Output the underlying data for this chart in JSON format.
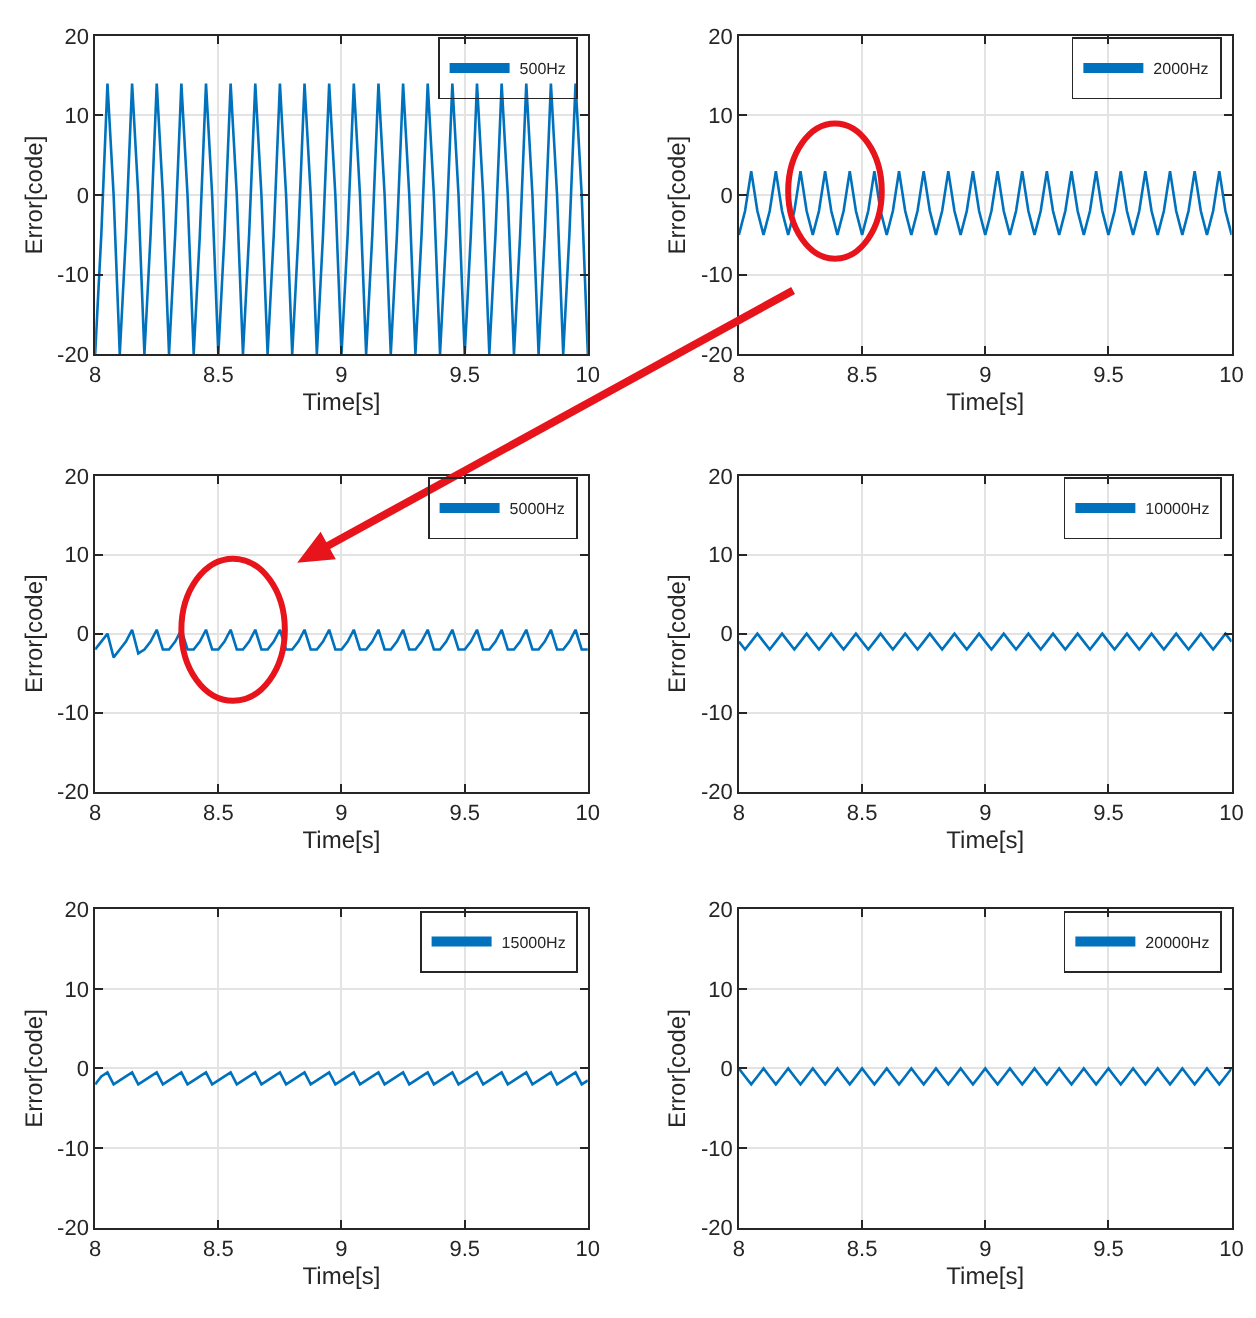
{
  "chart_data": [
    {
      "type": "line",
      "xlabel": "Time[s]",
      "ylabel": "Error[code]",
      "xlim": [
        8,
        10
      ],
      "xticks": [
        8,
        8.5,
        9,
        9.5,
        10
      ],
      "ylim": [
        -20,
        20
      ],
      "yticks": [
        -20,
        -10,
        0,
        10,
        20
      ],
      "grid": true,
      "legend": "top right",
      "x": [
        8,
        8.025,
        8.05,
        8.075,
        8.1,
        8.125,
        8.15,
        8.175,
        8.2,
        8.225,
        8.25,
        8.275,
        8.3,
        8.325,
        8.35,
        8.375,
        8.4,
        8.425,
        8.45,
        8.475,
        8.5,
        8.525,
        8.55,
        8.575,
        8.6,
        8.625,
        8.65,
        8.675,
        8.7,
        8.725,
        8.75,
        8.775,
        8.8,
        8.825,
        8.85,
        8.875,
        8.9,
        8.925,
        8.95,
        8.975,
        9,
        9.025,
        9.05,
        9.075,
        9.1,
        9.125,
        9.15,
        9.175,
        9.2,
        9.225,
        9.25,
        9.275,
        9.3,
        9.325,
        9.35,
        9.375,
        9.4,
        9.425,
        9.45,
        9.475,
        9.5,
        9.525,
        9.55,
        9.575,
        9.6,
        9.625,
        9.65,
        9.675,
        9.7,
        9.725,
        9.75,
        9.775,
        9.8,
        9.825,
        9.85,
        9.875,
        9.9,
        9.925,
        9.95,
        9.975,
        10
      ],
      "series": [
        {
          "name": "500Hz",
          "color": "#0072bd",
          "values": [
            -20,
            -5,
            14,
            0,
            -20,
            -5,
            14,
            0,
            -20,
            -5,
            14,
            0,
            -20,
            -5,
            14,
            0,
            -20,
            -5,
            14,
            0,
            -20,
            -5,
            14,
            0,
            -20,
            -5,
            14,
            0,
            -20,
            -5,
            14,
            0,
            -20,
            -5,
            14,
            0,
            -20,
            -5,
            14,
            0,
            -20,
            -5,
            14,
            0,
            -20,
            -5,
            14,
            0,
            -20,
            -5,
            14,
            0,
            -20,
            -5,
            14,
            0,
            -20,
            -5,
            14,
            0,
            -20,
            -5,
            14,
            0,
            -20,
            -5,
            14,
            0,
            -20,
            -5,
            14,
            0,
            -20,
            -5,
            14,
            0,
            -20,
            -5,
            14,
            0,
            -20
          ]
        }
      ]
    },
    {
      "type": "line",
      "xlabel": "Time[s]",
      "ylabel": "Error[code]",
      "xlim": [
        8,
        10
      ],
      "xticks": [
        8,
        8.5,
        9,
        9.5,
        10
      ],
      "ylim": [
        -20,
        20
      ],
      "yticks": [
        -20,
        -10,
        0,
        10,
        20
      ],
      "grid": true,
      "legend": "top right",
      "x": [
        8,
        8.025,
        8.05,
        8.075,
        8.1,
        8.125,
        8.15,
        8.175,
        8.2,
        8.225,
        8.25,
        8.275,
        8.3,
        8.325,
        8.35,
        8.375,
        8.4,
        8.425,
        8.45,
        8.475,
        8.5,
        8.525,
        8.55,
        8.575,
        8.6,
        8.625,
        8.65,
        8.675,
        8.7,
        8.725,
        8.75,
        8.775,
        8.8,
        8.825,
        8.85,
        8.875,
        8.9,
        8.925,
        8.95,
        8.975,
        9,
        9.025,
        9.05,
        9.075,
        9.1,
        9.125,
        9.15,
        9.175,
        9.2,
        9.225,
        9.25,
        9.275,
        9.3,
        9.325,
        9.35,
        9.375,
        9.4,
        9.425,
        9.45,
        9.475,
        9.5,
        9.525,
        9.55,
        9.575,
        9.6,
        9.625,
        9.65,
        9.675,
        9.7,
        9.725,
        9.75,
        9.775,
        9.8,
        9.825,
        9.85,
        9.875,
        9.9,
        9.925,
        9.95,
        9.975,
        10
      ],
      "series": [
        {
          "name": "2000Hz",
          "color": "#0072bd",
          "values": [
            -5,
            -2,
            3,
            -2,
            -5,
            -2,
            3,
            -2,
            -5,
            -2,
            3,
            -2,
            -5,
            -2,
            3,
            -2,
            -5,
            -2,
            3,
            -2,
            -5,
            -2,
            3,
            -2,
            -5,
            -2,
            3,
            -2,
            -5,
            -2,
            3,
            -2,
            -5,
            -2,
            3,
            -2,
            -5,
            -2,
            3,
            -2,
            -5,
            -2,
            3,
            -2,
            -5,
            -2,
            3,
            -2,
            -5,
            -2,
            3,
            -2,
            -5,
            -2,
            3,
            -2,
            -5,
            -2,
            3,
            -2,
            -5,
            -2,
            3,
            -2,
            -5,
            -2,
            3,
            -2,
            -5,
            -2,
            3,
            -2,
            -5,
            -2,
            3,
            -2,
            -5,
            -2,
            3,
            -2,
            -5
          ]
        }
      ]
    },
    {
      "type": "line",
      "xlabel": "Time[s]",
      "ylabel": "Error[code]",
      "xlim": [
        8,
        10
      ],
      "xticks": [
        8,
        8.5,
        9,
        9.5,
        10
      ],
      "ylim": [
        -20,
        20
      ],
      "yticks": [
        -20,
        -10,
        0,
        10,
        20
      ],
      "grid": true,
      "legend": "top right",
      "x": [
        8,
        8.025,
        8.05,
        8.075,
        8.1,
        8.125,
        8.15,
        8.175,
        8.2,
        8.225,
        8.25,
        8.275,
        8.3,
        8.325,
        8.35,
        8.375,
        8.4,
        8.425,
        8.45,
        8.475,
        8.5,
        8.525,
        8.55,
        8.575,
        8.6,
        8.625,
        8.65,
        8.675,
        8.7,
        8.725,
        8.75,
        8.775,
        8.8,
        8.825,
        8.85,
        8.875,
        8.9,
        8.925,
        8.95,
        8.975,
        9,
        9.025,
        9.05,
        9.075,
        9.1,
        9.125,
        9.15,
        9.175,
        9.2,
        9.225,
        9.25,
        9.275,
        9.3,
        9.325,
        9.35,
        9.375,
        9.4,
        9.425,
        9.45,
        9.475,
        9.5,
        9.525,
        9.55,
        9.575,
        9.6,
        9.625,
        9.65,
        9.675,
        9.7,
        9.725,
        9.75,
        9.775,
        9.8,
        9.825,
        9.85,
        9.875,
        9.9,
        9.925,
        9.95,
        9.975,
        10
      ],
      "series": [
        {
          "name": "5000Hz",
          "color": "#0072bd",
          "values": [
            -2,
            -1,
            0,
            -3,
            -2,
            -1,
            0.5,
            -2.5,
            -2,
            -1,
            0.5,
            -2,
            -2,
            -1,
            0.5,
            -2,
            -2,
            -1,
            0.5,
            -2,
            -2,
            -1,
            0.5,
            -2,
            -2,
            -1,
            0.5,
            -2,
            -2,
            -1,
            0.5,
            -2,
            -2,
            -1,
            0.5,
            -2,
            -2,
            -1,
            0.5,
            -2,
            -2,
            -1,
            0.5,
            -2,
            -2,
            -1,
            0.5,
            -2,
            -2,
            -1,
            0.5,
            -2,
            -2,
            -1,
            0.5,
            -2,
            -2,
            -1,
            0.5,
            -2,
            -2,
            -1,
            0.5,
            -2,
            -2,
            -1,
            0.5,
            -2,
            -2,
            -1,
            0.5,
            -2,
            -2,
            -1,
            0.5,
            -2,
            -2,
            -1,
            0.5,
            -2,
            -2
          ]
        }
      ]
    },
    {
      "type": "line",
      "xlabel": "Time[s]",
      "ylabel": "Error[code]",
      "xlim": [
        8,
        10
      ],
      "xticks": [
        8,
        8.5,
        9,
        9.5,
        10
      ],
      "ylim": [
        -20,
        20
      ],
      "yticks": [
        -20,
        -10,
        0,
        10,
        20
      ],
      "grid": true,
      "legend": "top right",
      "x": [
        8,
        8.025,
        8.05,
        8.075,
        8.1,
        8.125,
        8.15,
        8.175,
        8.2,
        8.225,
        8.25,
        8.275,
        8.3,
        8.325,
        8.35,
        8.375,
        8.4,
        8.425,
        8.45,
        8.475,
        8.5,
        8.525,
        8.55,
        8.575,
        8.6,
        8.625,
        8.65,
        8.675,
        8.7,
        8.725,
        8.75,
        8.775,
        8.8,
        8.825,
        8.85,
        8.875,
        8.9,
        8.925,
        8.95,
        8.975,
        9,
        9.025,
        9.05,
        9.075,
        9.1,
        9.125,
        9.15,
        9.175,
        9.2,
        9.225,
        9.25,
        9.275,
        9.3,
        9.325,
        9.35,
        9.375,
        9.4,
        9.425,
        9.45,
        9.475,
        9.5,
        9.525,
        9.55,
        9.575,
        9.6,
        9.625,
        9.65,
        9.675,
        9.7,
        9.725,
        9.75,
        9.775,
        9.8,
        9.825,
        9.85,
        9.875,
        9.9,
        9.925,
        9.95,
        9.975,
        10
      ],
      "series": [
        {
          "name": "10000Hz",
          "color": "#0072bd",
          "values": [
            -1,
            -2,
            -1,
            0,
            -1,
            -2,
            -1,
            0,
            -1,
            -2,
            -1,
            0,
            -1,
            -2,
            -1,
            0,
            -1,
            -2,
            -1,
            0,
            -1,
            -2,
            -1,
            0,
            -1,
            -2,
            -1,
            0,
            -1,
            -2,
            -1,
            0,
            -1,
            -2,
            -1,
            0,
            -1,
            -2,
            -1,
            0,
            -1,
            -2,
            -1,
            0,
            -1,
            -2,
            -1,
            0,
            -1,
            -2,
            -1,
            0,
            -1,
            -2,
            -1,
            0,
            -1,
            -2,
            -1,
            0,
            -1,
            -2,
            -1,
            0,
            -1,
            -2,
            -1,
            0,
            -1,
            -2,
            -1,
            0,
            -1,
            -2,
            -1,
            0,
            -1,
            -2,
            -1,
            0,
            -1
          ]
        }
      ]
    },
    {
      "type": "line",
      "xlabel": "Time[s]",
      "ylabel": "Error[code]",
      "xlim": [
        8,
        10
      ],
      "xticks": [
        8,
        8.5,
        9,
        9.5,
        10
      ],
      "ylim": [
        -20,
        20
      ],
      "yticks": [
        -20,
        -10,
        0,
        10,
        20
      ],
      "grid": true,
      "legend": "top right",
      "x": [
        8,
        8.025,
        8.05,
        8.075,
        8.1,
        8.125,
        8.15,
        8.175,
        8.2,
        8.225,
        8.25,
        8.275,
        8.3,
        8.325,
        8.35,
        8.375,
        8.4,
        8.425,
        8.45,
        8.475,
        8.5,
        8.525,
        8.55,
        8.575,
        8.6,
        8.625,
        8.65,
        8.675,
        8.7,
        8.725,
        8.75,
        8.775,
        8.8,
        8.825,
        8.85,
        8.875,
        8.9,
        8.925,
        8.95,
        8.975,
        9,
        9.025,
        9.05,
        9.075,
        9.1,
        9.125,
        9.15,
        9.175,
        9.2,
        9.225,
        9.25,
        9.275,
        9.3,
        9.325,
        9.35,
        9.375,
        9.4,
        9.425,
        9.45,
        9.475,
        9.5,
        9.525,
        9.55,
        9.575,
        9.6,
        9.625,
        9.65,
        9.675,
        9.7,
        9.725,
        9.75,
        9.775,
        9.8,
        9.825,
        9.85,
        9.875,
        9.9,
        9.925,
        9.95,
        9.975,
        10
      ],
      "series": [
        {
          "name": "15000Hz",
          "color": "#0072bd",
          "values": [
            -2,
            -1,
            -0.5,
            -2,
            -1.5,
            -1,
            -0.5,
            -2,
            -1.5,
            -1,
            -0.5,
            -2,
            -1.5,
            -1,
            -0.5,
            -2,
            -1.5,
            -1,
            -0.5,
            -2,
            -1.5,
            -1,
            -0.5,
            -2,
            -1.5,
            -1,
            -0.5,
            -2,
            -1.5,
            -1,
            -0.5,
            -2,
            -1.5,
            -1,
            -0.5,
            -2,
            -1.5,
            -1,
            -0.5,
            -2,
            -1.5,
            -1,
            -0.5,
            -2,
            -1.5,
            -1,
            -0.5,
            -2,
            -1.5,
            -1,
            -0.5,
            -2,
            -1.5,
            -1,
            -0.5,
            -2,
            -1.5,
            -1,
            -0.5,
            -2,
            -1.5,
            -1,
            -0.5,
            -2,
            -1.5,
            -1,
            -0.5,
            -2,
            -1.5,
            -1,
            -0.5,
            -2,
            -1.5,
            -1,
            -0.5,
            -2,
            -1.5,
            -1,
            -0.5,
            -2,
            -1.5
          ]
        }
      ]
    },
    {
      "type": "line",
      "xlabel": "Time[s]",
      "ylabel": "Error[code]",
      "xlim": [
        8,
        10
      ],
      "xticks": [
        8,
        8.5,
        9,
        9.5,
        10
      ],
      "ylim": [
        -20,
        20
      ],
      "yticks": [
        -20,
        -10,
        0,
        10,
        20
      ],
      "grid": true,
      "legend": "top right",
      "x": [
        8,
        8.025,
        8.05,
        8.075,
        8.1,
        8.125,
        8.15,
        8.175,
        8.2,
        8.225,
        8.25,
        8.275,
        8.3,
        8.325,
        8.35,
        8.375,
        8.4,
        8.425,
        8.45,
        8.475,
        8.5,
        8.525,
        8.55,
        8.575,
        8.6,
        8.625,
        8.65,
        8.675,
        8.7,
        8.725,
        8.75,
        8.775,
        8.8,
        8.825,
        8.85,
        8.875,
        8.9,
        8.925,
        8.95,
        8.975,
        9,
        9.025,
        9.05,
        9.075,
        9.1,
        9.125,
        9.15,
        9.175,
        9.2,
        9.225,
        9.25,
        9.275,
        9.3,
        9.325,
        9.35,
        9.375,
        9.4,
        9.425,
        9.45,
        9.475,
        9.5,
        9.525,
        9.55,
        9.575,
        9.6,
        9.625,
        9.65,
        9.675,
        9.7,
        9.725,
        9.75,
        9.775,
        9.8,
        9.825,
        9.85,
        9.875,
        9.9,
        9.925,
        9.95,
        9.975,
        10
      ],
      "series": [
        {
          "name": "20000Hz",
          "color": "#0072bd",
          "values": [
            0,
            -1,
            -2,
            -1,
            0,
            -1,
            -2,
            -1,
            0,
            -1,
            -2,
            -1,
            0,
            -1,
            -2,
            -1,
            0,
            -1,
            -2,
            -1,
            0,
            -1,
            -2,
            -1,
            0,
            -1,
            -2,
            -1,
            0,
            -1,
            -2,
            -1,
            0,
            -1,
            -2,
            -1,
            0,
            -1,
            -2,
            -1,
            0,
            -1,
            -2,
            -1,
            0,
            -1,
            -2,
            -1,
            0,
            -1,
            -2,
            -1,
            0,
            -1,
            -2,
            -1,
            0,
            -1,
            -2,
            -1,
            0,
            -1,
            -2,
            -1,
            0,
            -1,
            -2,
            -1,
            0,
            -1,
            -2,
            -1,
            0,
            -1,
            -2,
            -1,
            0,
            -1,
            -2,
            -1,
            0
          ]
        }
      ]
    }
  ]
}
